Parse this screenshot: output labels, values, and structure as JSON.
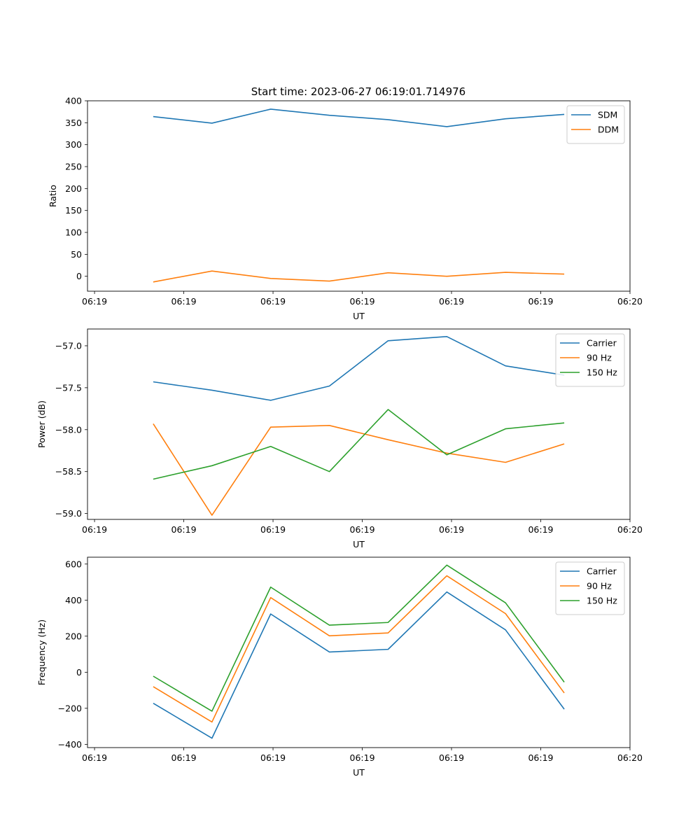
{
  "figure": {
    "title": "Start time: 2023-06-27 06:19:01.714976"
  },
  "colors": {
    "blue": "#1f77b4",
    "orange": "#ff7f0e",
    "green": "#2ca02c"
  },
  "chart_data": [
    {
      "type": "line",
      "title": "Start time: 2023-06-27 06:19:01.714976",
      "xlabel": "UT",
      "ylabel": "Ratio",
      "x": [
        1,
        2,
        3,
        4,
        5,
        6,
        7,
        8
      ],
      "xlim": [
        -0.12,
        9.12
      ],
      "xticks": [
        0,
        1.52,
        3.04,
        4.56,
        6.08,
        7.6,
        9.12
      ],
      "xticklabels": [
        "06:19",
        "06:19",
        "06:19",
        "06:19",
        "06:19",
        "06:19",
        "06:20"
      ],
      "ylim": [
        -34,
        400
      ],
      "yticks": [
        0,
        50,
        100,
        150,
        200,
        250,
        300,
        350,
        400
      ],
      "grid": false,
      "legend": "top-right",
      "series": [
        {
          "name": "SDM",
          "color": "#1f77b4",
          "values": [
            364,
            349,
            381,
            367,
            357,
            341,
            359,
            369
          ]
        },
        {
          "name": "DDM",
          "color": "#ff7f0e",
          "values": [
            -13,
            12,
            -5,
            -11,
            8,
            0,
            9,
            5
          ]
        }
      ]
    },
    {
      "type": "line",
      "xlabel": "UT",
      "ylabel": "Power (dB)",
      "x": [
        1,
        2,
        3,
        4,
        5,
        6,
        7,
        8
      ],
      "xlim": [
        -0.12,
        9.12
      ],
      "xticks": [
        0,
        1.52,
        3.04,
        4.56,
        6.08,
        7.6,
        9.12
      ],
      "xticklabels": [
        "06:19",
        "06:19",
        "06:19",
        "06:19",
        "06:19",
        "06:19",
        "06:20"
      ],
      "ylim": [
        -59.07,
        -56.8
      ],
      "yticks": [
        -59.0,
        -58.5,
        -58.0,
        -57.5,
        -57.0
      ],
      "yticklabels": [
        "−59.0",
        "−58.5",
        "−58.0",
        "−57.5",
        "−57.0"
      ],
      "grid": false,
      "legend": "top-right",
      "series": [
        {
          "name": "Carrier",
          "color": "#1f77b4",
          "values": [
            -57.43,
            -57.53,
            -57.65,
            -57.48,
            -56.94,
            -56.89,
            -57.24,
            -57.35
          ]
        },
        {
          "name": "90 Hz",
          "color": "#ff7f0e",
          "values": [
            -57.93,
            -59.02,
            -57.97,
            -57.95,
            -58.12,
            -58.28,
            -58.39,
            -58.17
          ]
        },
        {
          "name": "150 Hz",
          "color": "#2ca02c",
          "values": [
            -58.59,
            -58.43,
            -58.2,
            -58.5,
            -57.76,
            -58.3,
            -57.99,
            -57.92
          ]
        }
      ]
    },
    {
      "type": "line",
      "xlabel": "UT",
      "ylabel": "Frequency (Hz)",
      "x": [
        1,
        2,
        3,
        4,
        5,
        6,
        7,
        8
      ],
      "xlim": [
        -0.12,
        9.12
      ],
      "xticks": [
        0,
        1.52,
        3.04,
        4.56,
        6.08,
        7.6,
        9.12
      ],
      "xticklabels": [
        "06:19",
        "06:19",
        "06:19",
        "06:19",
        "06:19",
        "06:19",
        "06:20"
      ],
      "ylim": [
        -418,
        638
      ],
      "yticks": [
        -400,
        -200,
        0,
        200,
        400,
        600
      ],
      "yticklabels": [
        "−400",
        "−200",
        "0",
        "200",
        "400",
        "600"
      ],
      "grid": false,
      "legend": "top-right",
      "series": [
        {
          "name": "Carrier",
          "color": "#1f77b4",
          "values": [
            -172,
            -366,
            323,
            112,
            127,
            445,
            235,
            -205
          ]
        },
        {
          "name": "90 Hz",
          "color": "#ff7f0e",
          "values": [
            -80,
            -276,
            414,
            202,
            218,
            535,
            325,
            -115
          ]
        },
        {
          "name": "150 Hz",
          "color": "#2ca02c",
          "values": [
            -22,
            -216,
            472,
            261,
            276,
            594,
            385,
            -55
          ]
        }
      ]
    }
  ]
}
